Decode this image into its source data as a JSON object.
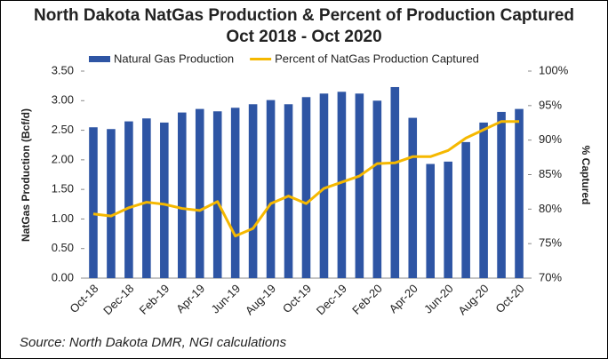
{
  "chart_data": {
    "type": "bar-line",
    "title": "North Dakota NatGas Production & Percent of Production Captured",
    "subtitle": "Oct 2018 - Oct 2020",
    "y_label": "NatGas Production (Bcf/d)",
    "y2_label": "% Captured",
    "source": "Source: North Dakota DMR, NGI calculations",
    "categories": [
      "Oct-18",
      null,
      "Dec-18",
      null,
      "Feb-19",
      null,
      "Apr-19",
      null,
      "Jun-19",
      null,
      "Aug-19",
      null,
      "Oct-19",
      null,
      "Dec-19",
      null,
      "Feb-20",
      null,
      "Apr-20",
      null,
      "Jun-20",
      null,
      "Aug-20",
      null,
      "Oct-20"
    ],
    "series": [
      {
        "name": "Natural Gas Production",
        "type": "bar",
        "color": "#2e55a4",
        "values": [
          2.55,
          2.52,
          2.65,
          2.7,
          2.63,
          2.8,
          2.86,
          2.82,
          2.88,
          2.94,
          3.01,
          2.94,
          3.06,
          3.12,
          3.15,
          3.12,
          3.0,
          3.23,
          2.71,
          1.93,
          1.97,
          2.3,
          2.63,
          2.81,
          2.86
        ]
      },
      {
        "name": "Percent of NatGas Production Captured",
        "type": "line",
        "axis": "y2",
        "color": "#f5b800",
        "values": [
          79.3,
          79.0,
          80.2,
          81.0,
          80.7,
          80.1,
          79.8,
          81.1,
          76.1,
          77.2,
          80.8,
          81.9,
          80.8,
          83.0,
          83.9,
          84.8,
          86.6,
          86.7,
          87.6,
          87.6,
          88.5,
          90.3,
          91.5,
          92.7,
          92.7
        ]
      }
    ],
    "ylim": [
      0,
      3.5
    ],
    "yticks": [
      {
        "value": 0,
        "label": "0.00"
      },
      {
        "value": 0.5,
        "label": "0.50"
      },
      {
        "value": 1,
        "label": "1.00"
      },
      {
        "value": 1.5,
        "label": "1.50"
      },
      {
        "value": 2,
        "label": "2.00"
      },
      {
        "value": 2.5,
        "label": "2.50"
      },
      {
        "value": 3,
        "label": "3.00"
      },
      {
        "value": 3.5,
        "label": "3.50"
      }
    ],
    "y2lim": [
      70,
      100
    ],
    "y2ticks": [
      {
        "value": 70,
        "label": "70%"
      },
      {
        "value": 75,
        "label": "75%"
      },
      {
        "value": 80,
        "label": "80%"
      },
      {
        "value": 85,
        "label": "85%"
      },
      {
        "value": 90,
        "label": "90%"
      },
      {
        "value": 95,
        "label": "95%"
      },
      {
        "value": 100,
        "label": "100%"
      }
    ],
    "legend": "top"
  }
}
